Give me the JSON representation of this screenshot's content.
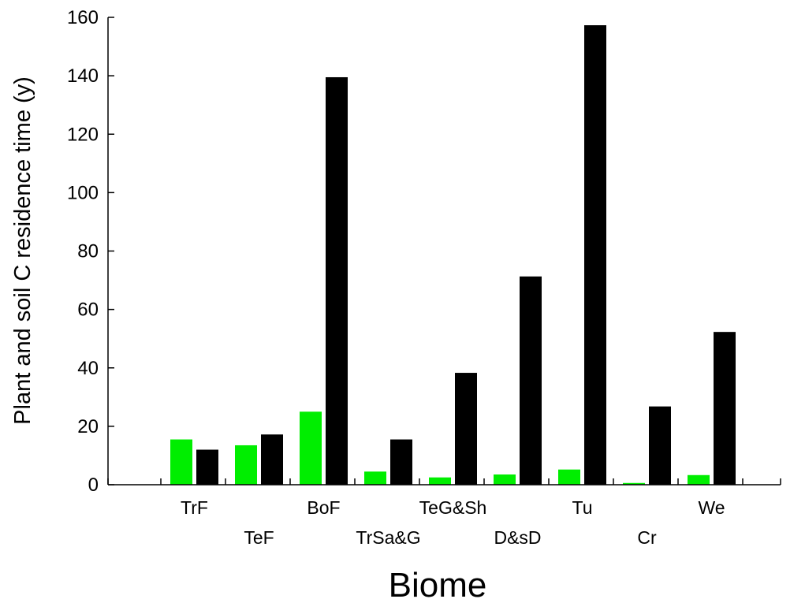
{
  "chart_data": {
    "type": "bar",
    "categories": [
      "TrF",
      "TeF",
      "BoF",
      "TrSa&G",
      "TeG&Sh",
      "D&sD",
      "Tu",
      "Cr",
      "We"
    ],
    "series": [
      {
        "color": "#00ee00",
        "values": [
          15.5,
          13.5,
          25,
          4.5,
          2.5,
          3.5,
          5.2,
          0.6,
          3.3
        ]
      },
      {
        "color": "#000000",
        "values": [
          12,
          17.2,
          139.5,
          15.5,
          38.3,
          71.3,
          157.3,
          26.8,
          52.3
        ]
      }
    ],
    "xlabel": "Biome",
    "ylabel": "Plant and soil C residence time (y)",
    "ylim": [
      0,
      160
    ],
    "yticks": [
      0,
      20,
      40,
      60,
      80,
      100,
      120,
      140,
      160
    ],
    "grid": false,
    "legend": "none"
  }
}
